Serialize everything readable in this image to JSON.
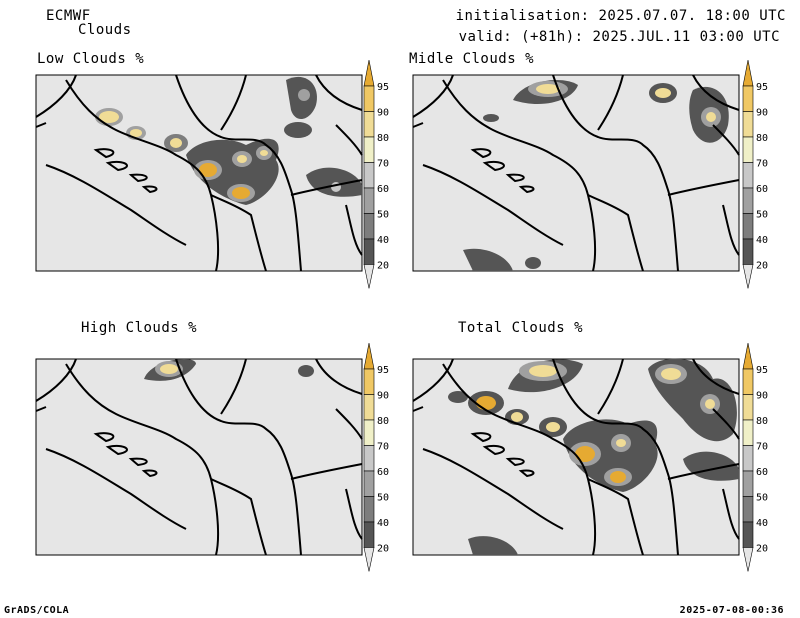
{
  "header": {
    "model": "ECMWF",
    "product": "Clouds",
    "init_line": "initialisation: 2025.07.07. 18:00 UTC",
    "valid_line": "valid: (+81h): 2025.JUL.11 03:00 UTC"
  },
  "panels": [
    {
      "title": "Low Clouds %"
    },
    {
      "title": "Midle Clouds %"
    },
    {
      "title": "High Clouds %"
    },
    {
      "title": "Total Clouds %"
    }
  ],
  "colorbar": {
    "labels": [
      "20",
      "40",
      "50",
      "60",
      "70",
      "80",
      "90",
      "95"
    ],
    "colors": [
      "#e6e6e6",
      "#555555",
      "#7d7d7d",
      "#a0a0a0",
      "#c8c8c8",
      "#f0f0c8",
      "#f0dc96",
      "#f0c864",
      "#e6aa32"
    ]
  },
  "footer": {
    "left": "GrADS/COLA",
    "right": "2025-07-08-00:36"
  }
}
